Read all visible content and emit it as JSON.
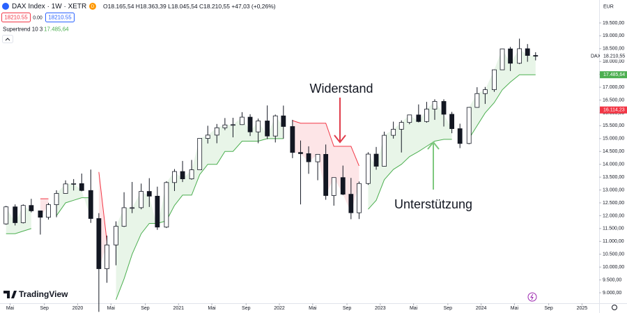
{
  "header": {
    "symbol": "DAX Index · 1W · XETR",
    "badge": "D",
    "ohlc": "O18.165,54 H18.363,39 L18.045,54 C18.210,55 +47,03 (+0,26%)",
    "sell": "18210.55",
    "spread": "0.00",
    "buy": "18210.55",
    "indicator": "Supertrend 10 3",
    "indicator_value": "17.485,64",
    "currency": "EUR",
    "logo": "TradingView",
    "symbol_tag": "DAX"
  },
  "chart_data": {
    "type": "candlestick",
    "annotations": [
      {
        "text": "Widerstand",
        "color": "#e03c4a"
      },
      {
        "text": "Unterstützung",
        "color": "#7ec87e"
      }
    ],
    "xlim": [
      2019.23,
      2025.17
    ],
    "ylim": [
      8593,
      20394
    ],
    "xticks": [
      {
        "value": 2019.33,
        "label": "Mai"
      },
      {
        "value": 2019.67,
        "label": "Sep"
      },
      2020,
      {
        "value": 2020.33,
        "label": "Mai"
      },
      {
        "value": 2020.67,
        "label": "Sep"
      },
      2021,
      {
        "value": 2021.33,
        "label": "Mai"
      },
      {
        "value": 2021.67,
        "label": "Sep"
      },
      2022,
      {
        "value": 2022.33,
        "label": "Mai"
      },
      {
        "value": 2022.67,
        "label": "Sep"
      },
      2023,
      {
        "value": 2023.33,
        "label": "Mai"
      },
      {
        "value": 2023.67,
        "label": "Sep"
      },
      2024,
      {
        "value": 2024.33,
        "label": "Mai"
      },
      {
        "value": 2024.67,
        "label": "Sep"
      },
      2025
    ],
    "yticks": [
      {
        "value": 9000,
        "label": "9.000,00"
      },
      {
        "value": 9500,
        "label": "9.500,00"
      },
      {
        "value": 10000,
        "label": "10.000,00"
      },
      {
        "value": 10500,
        "label": "10.500,00"
      },
      {
        "value": 11000,
        "label": "11.000,00"
      },
      {
        "value": 11500,
        "label": "11.500,00"
      },
      {
        "value": 12000,
        "label": "12.000,00"
      },
      {
        "value": 12500,
        "label": "12.500,00"
      },
      {
        "value": 13000,
        "label": "13.000,00"
      },
      {
        "value": 13500,
        "label": "13.500,00"
      },
      {
        "value": 14000,
        "label": "14.000,00"
      },
      {
        "value": 14500,
        "label": "14.500,00"
      },
      {
        "value": 15000,
        "label": "15.000,00"
      },
      {
        "value": 15500,
        "label": "15.500,00"
      },
      {
        "value": 16000,
        "label": "16.000,00"
      },
      {
        "value": 16500,
        "label": "16.500,00"
      },
      {
        "value": 17000,
        "label": "17.000,00"
      },
      {
        "value": 17500,
        "label": "17.500,00"
      },
      {
        "value": 18000,
        "label": "18.000,00"
      },
      {
        "value": 18500,
        "label": "18.500,00"
      },
      {
        "value": 19000,
        "label": "19.000,00"
      },
      {
        "value": 19500,
        "label": "19.500,00"
      }
    ],
    "price_tags": [
      {
        "value": 18210.55,
        "label": "18.210,55",
        "color": "#ffffff"
      },
      {
        "value": 17485.64,
        "label": "17.485,64",
        "color": "#4caf50"
      },
      {
        "value": 16114.23,
        "label": "16.114,23",
        "color": "#f23645"
      }
    ],
    "colors": {
      "up_fill": "#ffffff",
      "candle": "#131722",
      "support": "#4caf50",
      "resistance": "#f23645",
      "support_fill": "rgba(76,175,80,0.13)",
      "resistance_fill": "rgba(242,54,69,0.13)"
    },
    "x": [
      2019.29,
      2019.38,
      2019.46,
      2019.54,
      2019.63,
      2019.71,
      2019.79,
      2019.88,
      2019.96,
      2020.04,
      2020.13,
      2020.21,
      2020.29,
      2020.38,
      2020.46,
      2020.54,
      2020.63,
      2020.71,
      2020.79,
      2020.88,
      2020.96,
      2021.04,
      2021.13,
      2021.21,
      2021.29,
      2021.38,
      2021.46,
      2021.54,
      2021.63,
      2021.71,
      2021.79,
      2021.88,
      2021.96,
      2022.04,
      2022.13,
      2022.21,
      2022.29,
      2022.38,
      2022.46,
      2022.54,
      2022.63,
      2022.71,
      2022.79,
      2022.88,
      2022.96,
      2023.04,
      2023.13,
      2023.21,
      2023.29,
      2023.38,
      2023.46,
      2023.54,
      2023.63,
      2023.71,
      2023.79,
      2023.88,
      2023.96,
      2024.04,
      2024.13,
      2024.21,
      2024.29,
      2024.38,
      2024.46,
      2024.54
    ],
    "open": [
      11681,
      12344,
      11727,
      12399,
      12189,
      11939,
      12428,
      12866,
      13236,
      13249,
      12981,
      11890,
      9936,
      10862,
      11587,
      12311,
      12313,
      12945,
      12761,
      11556,
      13291,
      13719,
      13433,
      13786,
      15008,
      15136,
      15421,
      15531,
      15544,
      15835,
      15261,
      15688,
      15100,
      15885,
      15471,
      14461,
      14415,
      14098,
      14388,
      12784,
      13484,
      12835,
      12114,
      13253,
      14397,
      13924,
      15128,
      15365,
      15629,
      15922,
      15664,
      16148,
      16447,
      15947,
      15387,
      14810,
      16215,
      16752,
      16904,
      17678,
      18492,
      17932,
      18498,
      18235
    ],
    "high": [
      12380,
      12440,
      12440,
      12656,
      12200,
      12495,
      12990,
      13375,
      13425,
      13640,
      13795,
      12100,
      11225,
      11780,
      12913,
      13313,
      13250,
      13460,
      13130,
      13340,
      13815,
      14131,
      14170,
      15010,
      15500,
      15570,
      15800,
      15810,
      16030,
      15950,
      15780,
      16290,
      15935,
      16285,
      15730,
      14925,
      14700,
      14400,
      14770,
      13480,
      13950,
      13470,
      13330,
      14470,
      14675,
      15270,
      15660,
      15710,
      15920,
      16330,
      16430,
      16530,
      16530,
      16040,
      15580,
      16230,
      17000,
      17010,
      17690,
      18500,
      18570,
      18890,
      18680,
      18363
    ],
    "low": [
      11650,
      11620,
      11700,
      12130,
      11266,
      11850,
      11940,
      12860,
      12980,
      12950,
      11720,
      8256,
      9390,
      10070,
      11560,
      12100,
      12250,
      12340,
      11450,
      11520,
      12960,
      13310,
      13400,
      13780,
      14810,
      14820,
      15330,
      15050,
      15530,
      15100,
      14820,
      14980,
      14850,
      15000,
      14240,
      12439,
      13630,
      13380,
      12620,
      12390,
      12800,
      11863,
      11870,
      13200,
      13790,
      13910,
      15000,
      14460,
      15560,
      15630,
      15620,
      15730,
      15470,
      15210,
      14630,
      14780,
      16200,
      16350,
      16820,
      17670,
      17630,
      17900,
      17990,
      18045
    ],
    "close": [
      12344,
      11727,
      12399,
      12189,
      11939,
      12428,
      12866,
      13236,
      13249,
      12981,
      11890,
      9936,
      10862,
      11587,
      12311,
      12313,
      12945,
      12761,
      11556,
      13291,
      13719,
      13433,
      13786,
      15008,
      15136,
      15421,
      15531,
      15544,
      15835,
      15261,
      15688,
      15100,
      15885,
      15471,
      14461,
      14415,
      14098,
      14388,
      12784,
      13484,
      12835,
      12114,
      13253,
      14397,
      13924,
      15128,
      15365,
      15629,
      15922,
      15664,
      16148,
      16447,
      15947,
      15387,
      14810,
      16215,
      16752,
      16904,
      17678,
      18492,
      17932,
      18498,
      18235,
      18211
    ],
    "supertrend_up": [
      11300,
      11300,
      11400,
      11500,
      null,
      null,
      12000,
      12500,
      12600,
      12700,
      12700,
      null,
      null,
      8730,
      9540,
      10500,
      11300,
      11700,
      11700,
      11800,
      12400,
      12800,
      12800,
      13600,
      14000,
      14000,
      14500,
      14500,
      14900,
      14900,
      14900,
      15000,
      15000,
      15000,
      null,
      null,
      null,
      null,
      null,
      null,
      null,
      null,
      null,
      12250,
      12600,
      13400,
      13800,
      14000,
      14300,
      14500,
      14700,
      14900,
      14970,
      14970,
      null,
      15000,
      15500,
      16000,
      16400,
      16900,
      17200,
      17485,
      17485,
      17485.64
    ],
    "supertrend_down": [
      null,
      null,
      null,
      null,
      12660,
      12660,
      null,
      null,
      null,
      null,
      null,
      13700,
      11000,
      null,
      null,
      null,
      null,
      null,
      null,
      null,
      null,
      null,
      null,
      null,
      null,
      null,
      null,
      null,
      null,
      null,
      null,
      null,
      null,
      null,
      15700,
      15600,
      15600,
      15600,
      15600,
      14700,
      14700,
      14700,
      13940,
      null,
      null,
      null,
      null,
      null,
      null,
      null,
      null,
      null,
      null,
      null,
      16150,
      null,
      null,
      null,
      null,
      null,
      null,
      null,
      null,
      null
    ]
  }
}
